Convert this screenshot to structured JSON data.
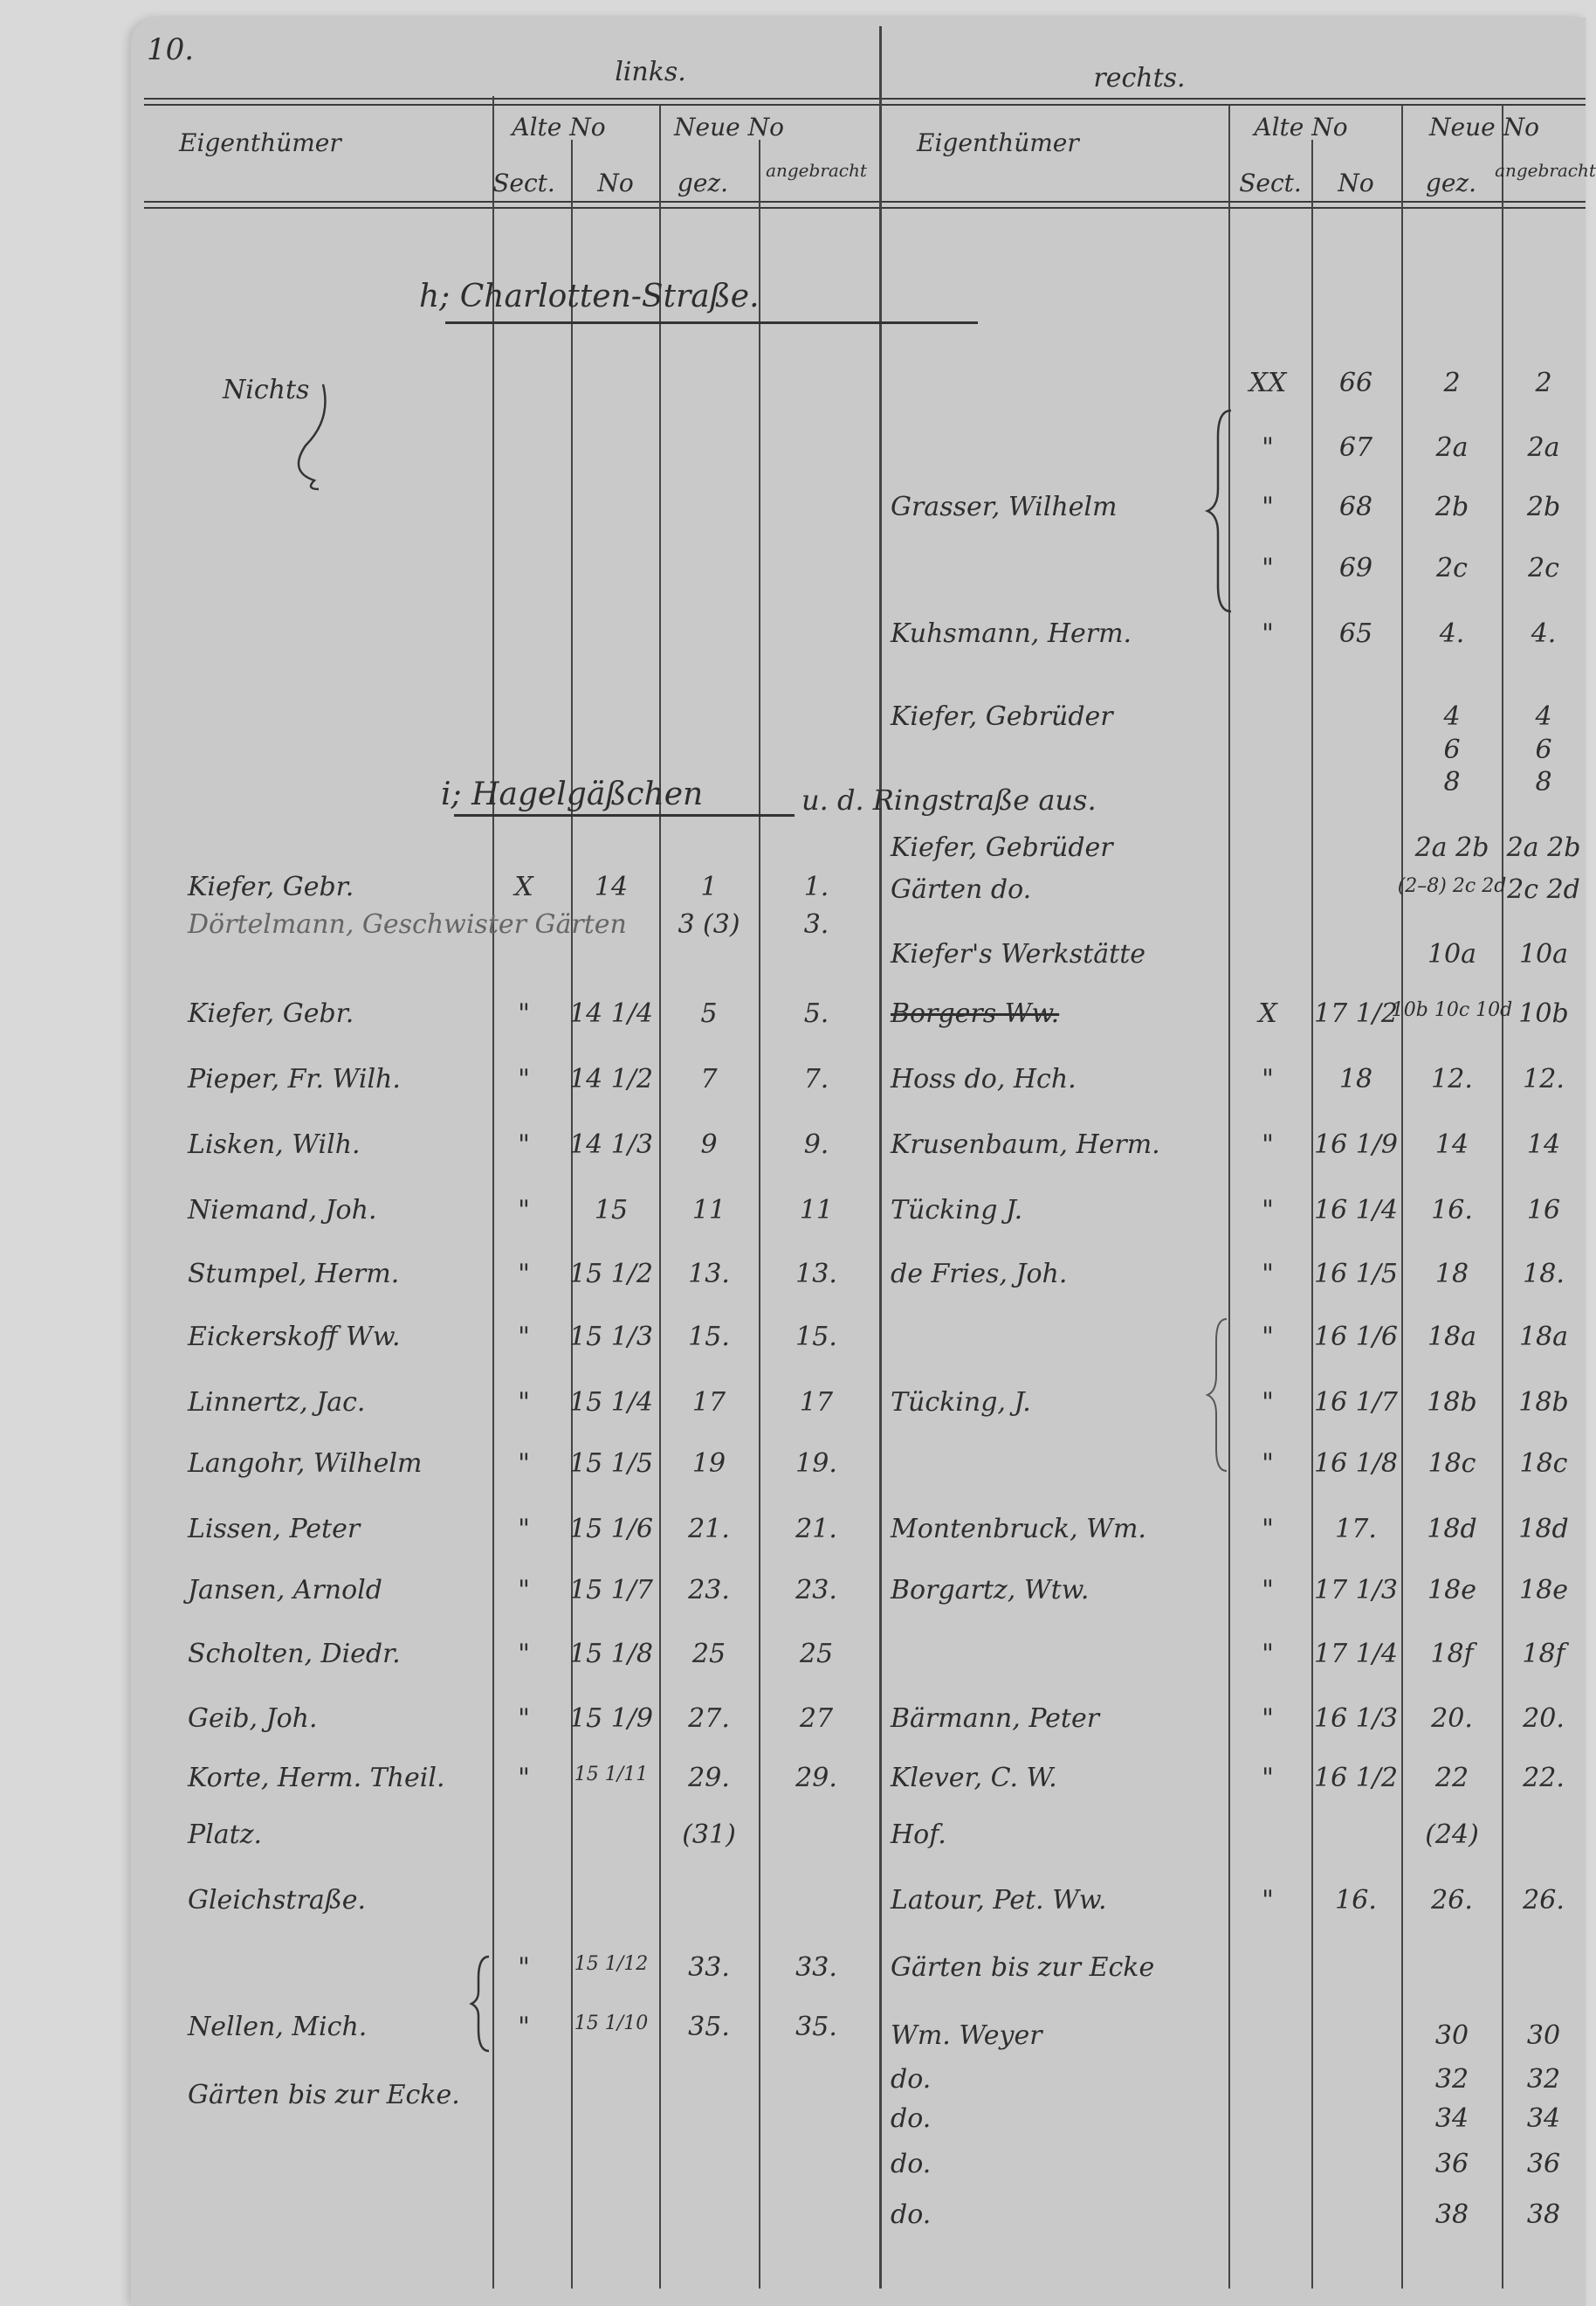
{
  "page_number": "10.",
  "sides": {
    "left": "links.",
    "right": "rechts."
  },
  "headers": {
    "owner": "Eigenthümer",
    "old_no": "Alte No",
    "old_sect": "Sect.",
    "old_number": "No",
    "new_no": "Neue No",
    "new_painted": "gez.",
    "new_affixed": "angebracht"
  },
  "sections": {
    "h": "h; Charlotten-Straße.",
    "i": "i; Hagelgäßchen",
    "i_cont": "u. d. Ringstraße aus."
  },
  "left": {
    "nothing": "Nichts",
    "rows": [
      {
        "owner": "Kiefer, Gebr.",
        "sect": "X",
        "no": "14",
        "new": "1",
        "affixed": "1."
      },
      {
        "owner": "Dörtelmann, Geschwister Gärten",
        "sect": "",
        "no": "",
        "new": "3 (3)",
        "affixed": "3."
      },
      {
        "owner": "Kiefer, Gebr.",
        "sect": "\"",
        "no": "14 1/4",
        "new": "5",
        "affixed": "5."
      },
      {
        "owner": "Pieper, Fr. Wilh.",
        "sect": "\"",
        "no": "14 1/2",
        "new": "7",
        "affixed": "7."
      },
      {
        "owner": "Lisken, Wilh.",
        "sect": "\"",
        "no": "14 1/3",
        "new": "9",
        "affixed": "9."
      },
      {
        "owner": "Niemand, Joh.",
        "sect": "\"",
        "no": "15",
        "new": "11",
        "affixed": "11"
      },
      {
        "owner": "Stumpel, Herm.",
        "sect": "\"",
        "no": "15 1/2",
        "new": "13.",
        "affixed": "13."
      },
      {
        "owner": "Eickerskoff Ww.",
        "sect": "\"",
        "no": "15 1/3",
        "new": "15.",
        "affixed": "15."
      },
      {
        "owner": "Linnertz, Jac.",
        "sect": "\"",
        "no": "15 1/4",
        "new": "17",
        "affixed": "17"
      },
      {
        "owner": "Langohr, Wilhelm",
        "sect": "\"",
        "no": "15 1/5",
        "new": "19",
        "affixed": "19."
      },
      {
        "owner": "Lissen, Peter",
        "sect": "\"",
        "no": "15 1/6",
        "new": "21.",
        "affixed": "21."
      },
      {
        "owner": "Jansen, Arnold",
        "sect": "\"",
        "no": "15 1/7",
        "new": "23.",
        "affixed": "23."
      },
      {
        "owner": "Scholten, Diedr.",
        "sect": "\"",
        "no": "15 1/8",
        "new": "25",
        "affixed": "25"
      },
      {
        "owner": "Geib, Joh.",
        "sect": "\"",
        "no": "15 1/9",
        "new": "27.",
        "affixed": "27"
      },
      {
        "owner": "Korte, Herm. Theil.",
        "sect": "\"",
        "no": "15 1/11",
        "new": "29.",
        "affixed": "29."
      },
      {
        "owner": "Platz.",
        "sect": "",
        "no": "",
        "new": "(31)",
        "affixed": ""
      },
      {
        "owner": "Gleichstraße.",
        "sect": "",
        "no": "",
        "new": "",
        "affixed": ""
      },
      {
        "owner": "",
        "sect": "\"",
        "no": "15 1/12",
        "new": "33.",
        "affixed": "33."
      },
      {
        "owner": "Nellen, Mich.",
        "sect": "\"",
        "no": "15 1/10",
        "new": "35.",
        "affixed": "35."
      },
      {
        "owner": "Gärten bis zur Ecke.",
        "sect": "",
        "no": "",
        "new": "",
        "affixed": ""
      }
    ]
  },
  "right": {
    "rows": [
      {
        "owner": "",
        "sect": "XX",
        "no": "66",
        "new": "2",
        "affixed": "2"
      },
      {
        "owner": "",
        "sect": "\"",
        "no": "67",
        "new": "2a",
        "affixed": "2a"
      },
      {
        "owner": "Grasser, Wilhelm",
        "sect": "\"",
        "no": "68",
        "new": "2b",
        "affixed": "2b"
      },
      {
        "owner": "",
        "sect": "\"",
        "no": "69",
        "new": "2c",
        "affixed": "2c"
      },
      {
        "owner": "Kuhsmann, Herm.",
        "sect": "\"",
        "no": "65",
        "new": "4.",
        "affixed": "4."
      },
      {
        "owner": "Kiefer, Gebrüder",
        "sect": "",
        "no": "",
        "new": "4",
        "affixed": "4"
      },
      {
        "owner": "",
        "sect": "",
        "no": "",
        "new": "6",
        "affixed": "6"
      },
      {
        "owner": "",
        "sect": "",
        "no": "",
        "new": "8",
        "affixed": "8"
      },
      {
        "owner": "Kiefer, Gebrüder",
        "sect": "",
        "no": "",
        "new": "2a 2b",
        "affixed": "2a 2b"
      },
      {
        "owner": "Gärten do.",
        "sect": "",
        "no": "",
        "new": "(2–8) 2c 2d",
        "affixed": "2c 2d"
      },
      {
        "owner": "Kiefer's Werkstätte",
        "sect": "",
        "no": "",
        "new": "10a",
        "affixed": "10a"
      },
      {
        "owner": "Borgers Ww.",
        "sect": "X",
        "no": "17 1/2",
        "new": "10b 10c 10d",
        "affixed": "10b"
      },
      {
        "owner": "Hoss do, Hch.",
        "sect": "\"",
        "no": "18",
        "new": "12.",
        "affixed": "12."
      },
      {
        "owner": "Krusenbaum, Herm.",
        "sect": "\"",
        "no": "16 1/9",
        "new": "14",
        "affixed": "14"
      },
      {
        "owner": "Tücking J.",
        "sect": "\"",
        "no": "16 1/4",
        "new": "16.",
        "affixed": "16"
      },
      {
        "owner": "de Fries, Joh.",
        "sect": "\"",
        "no": "16 1/5",
        "new": "18",
        "affixed": "18."
      },
      {
        "owner": "",
        "sect": "\"",
        "no": "16 1/6",
        "new": "18a",
        "affixed": "18a"
      },
      {
        "owner": "Tücking, J.",
        "sect": "\"",
        "no": "16 1/7",
        "new": "18b",
        "affixed": "18b"
      },
      {
        "owner": "",
        "sect": "\"",
        "no": "16 1/8",
        "new": "18c",
        "affixed": "18c"
      },
      {
        "owner": "Montenbruck, Wm.",
        "sect": "\"",
        "no": "17.",
        "new": "18d",
        "affixed": "18d"
      },
      {
        "owner": "Borgartz, Wtw.",
        "sect": "\"",
        "no": "17 1/3",
        "new": "18e",
        "affixed": "18e"
      },
      {
        "owner": "",
        "sect": "\"",
        "no": "17 1/4",
        "new": "18f",
        "affixed": "18f"
      },
      {
        "owner": "Bärmann, Peter",
        "sect": "\"",
        "no": "16 1/3",
        "new": "20.",
        "affixed": "20."
      },
      {
        "owner": "Klever, C. W.",
        "sect": "\"",
        "no": "16 1/2",
        "new": "22",
        "affixed": "22."
      },
      {
        "owner": "Hof.",
        "sect": "",
        "no": "",
        "new": "(24)",
        "affixed": ""
      },
      {
        "owner": "Latour, Pet. Ww.",
        "sect": "\"",
        "no": "16.",
        "new": "26.",
        "affixed": "26."
      },
      {
        "owner": "Gärten bis zur Ecke",
        "sect": "",
        "no": "",
        "new": "",
        "affixed": ""
      },
      {
        "owner": "Wm. Weyer",
        "sect": "",
        "no": "",
        "new": "30",
        "affixed": "30"
      },
      {
        "owner": "do.",
        "sect": "",
        "no": "",
        "new": "32",
        "affixed": "32"
      },
      {
        "owner": "do.",
        "sect": "",
        "no": "",
        "new": "34",
        "affixed": "34"
      },
      {
        "owner": "do.",
        "sect": "",
        "no": "",
        "new": "36",
        "affixed": "36"
      },
      {
        "owner": "do.",
        "sect": "",
        "no": "",
        "new": "38",
        "affixed": "38"
      }
    ]
  }
}
